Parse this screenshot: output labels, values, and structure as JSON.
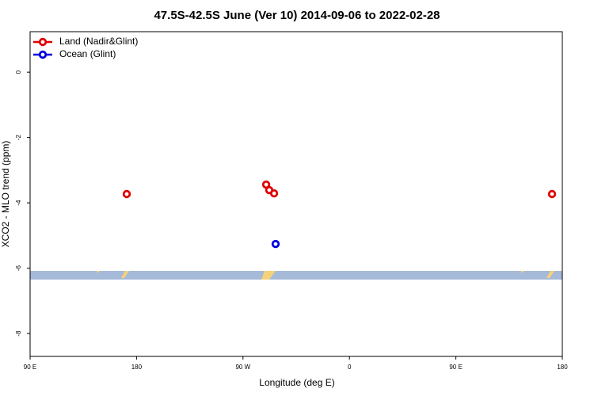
{
  "chart_data": {
    "type": "scatter",
    "title": "47.5S-42.5S June (Ver 10)   2014-09-06 to 2022-02-28",
    "xlabel": "Longitude (deg E)",
    "ylabel": "XCO2 - MLO trend (ppm)",
    "xlim": [
      90,
      540
    ],
    "ylim": [
      -8.7,
      1.24
    ],
    "xticks": [
      {
        "value": 90,
        "label": "90 E"
      },
      180,
      {
        "value": 270,
        "label": "90 W"
      },
      {
        "value": 360,
        "label": "0"
      },
      {
        "value": 450,
        "label": "90 E"
      },
      {
        "value": 540,
        "label": "180"
      }
    ],
    "yticks": [
      -8,
      -6,
      -4,
      -2,
      0
    ],
    "legend": "top-left",
    "series": [
      {
        "name": "Land (Nadir&Glint)",
        "color": "#e00000",
        "x": [
          171.7,
          289.6,
          292.2,
          296.3,
          531.3
        ],
        "values": [
          -3.73,
          -3.44,
          -3.61,
          -3.71,
          -3.73
        ]
      },
      {
        "name": "Ocean (Glint)",
        "color": "#0000e0",
        "x": [
          297.6
        ],
        "values": [
          -5.26
        ]
      }
    ]
  }
}
